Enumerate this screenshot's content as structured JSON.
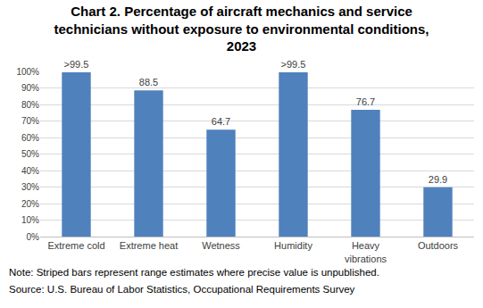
{
  "chart_data": {
    "type": "bar",
    "title": "Chart 2. Percentage of aircraft mechanics and service technicians without exposure to environmental conditions, 2023",
    "categories": [
      "Extreme cold",
      "Extreme heat",
      "Wetness",
      "Humidity",
      "Heavy vibrations",
      "Outdoors"
    ],
    "values": [
      99.5,
      88.5,
      64.7,
      99.5,
      76.7,
      29.9
    ],
    "value_labels": [
      ">99.5",
      "88.5",
      "64.7",
      ">99.5",
      "76.7",
      "29.9"
    ],
    "data_labels": true,
    "color": "#4f81bd",
    "ylim": [
      0,
      100
    ],
    "yticks": [
      {
        "value": 0,
        "label": "0%"
      },
      {
        "value": 10,
        "label": "10%"
      },
      {
        "value": 20,
        "label": "20%"
      },
      {
        "value": 30,
        "label": "30%"
      },
      {
        "value": 40,
        "label": "40%"
      },
      {
        "value": 50,
        "label": "50%"
      },
      {
        "value": 60,
        "label": "60%"
      },
      {
        "value": 70,
        "label": "70%"
      },
      {
        "value": 80,
        "label": "80%"
      },
      {
        "value": 90,
        "label": "90%"
      },
      {
        "value": 100,
        "label": "100%"
      }
    ],
    "grid": true,
    "annotations": [
      "Note: Striped bars represent range estimates where precise value is unpublished.",
      "Source: U.S. Bureau of Labor Statistics, Occupational Requirements Survey"
    ]
  }
}
